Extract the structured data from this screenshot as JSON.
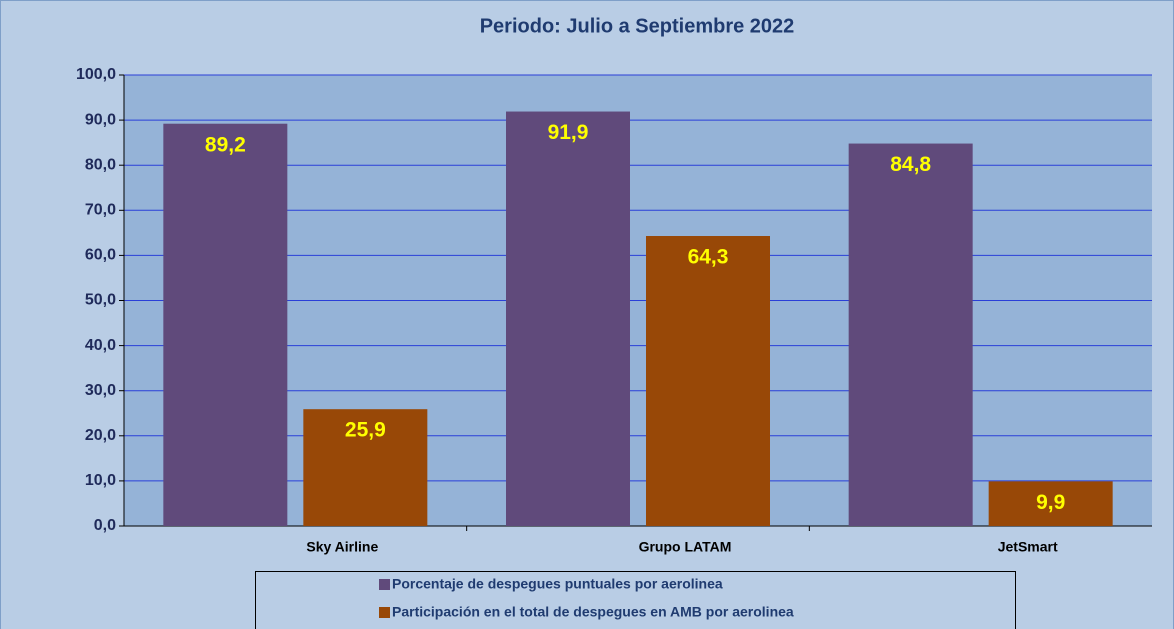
{
  "chart_data": {
    "type": "bar",
    "title": "Periodo: Julio a Septiembre  2022",
    "categories": [
      "Sky Airline",
      "Grupo LATAM",
      "JetSmart"
    ],
    "series": [
      {
        "name": "Porcentaje de despegues puntuales por aerolinea",
        "color": "#604a7b",
        "values": [
          89.2,
          91.9,
          84.8
        ],
        "value_labels": [
          "89,2",
          "91,9",
          "84,8"
        ]
      },
      {
        "name": "Participación en el total de despegues en AMB por aerolinea",
        "color": "#984807",
        "values": [
          25.9,
          64.3,
          9.9
        ],
        "value_labels": [
          "25,9",
          "64,3",
          "9,9"
        ]
      }
    ],
    "ylim": [
      0,
      100
    ],
    "yticks": [
      {
        "value": 0,
        "label": "0,0"
      },
      {
        "value": 10,
        "label": "10,0"
      },
      {
        "value": 20,
        "label": "20,0"
      },
      {
        "value": 30,
        "label": "30,0"
      },
      {
        "value": 40,
        "label": "40,0"
      },
      {
        "value": 50,
        "label": "50,0"
      },
      {
        "value": 60,
        "label": "60,0"
      },
      {
        "value": 70,
        "label": "70,0"
      },
      {
        "value": 80,
        "label": "80,0"
      },
      {
        "value": 90,
        "label": "90,0"
      },
      {
        "value": 100,
        "label": "100,0"
      }
    ],
    "grid": true,
    "legend": "bottom"
  }
}
